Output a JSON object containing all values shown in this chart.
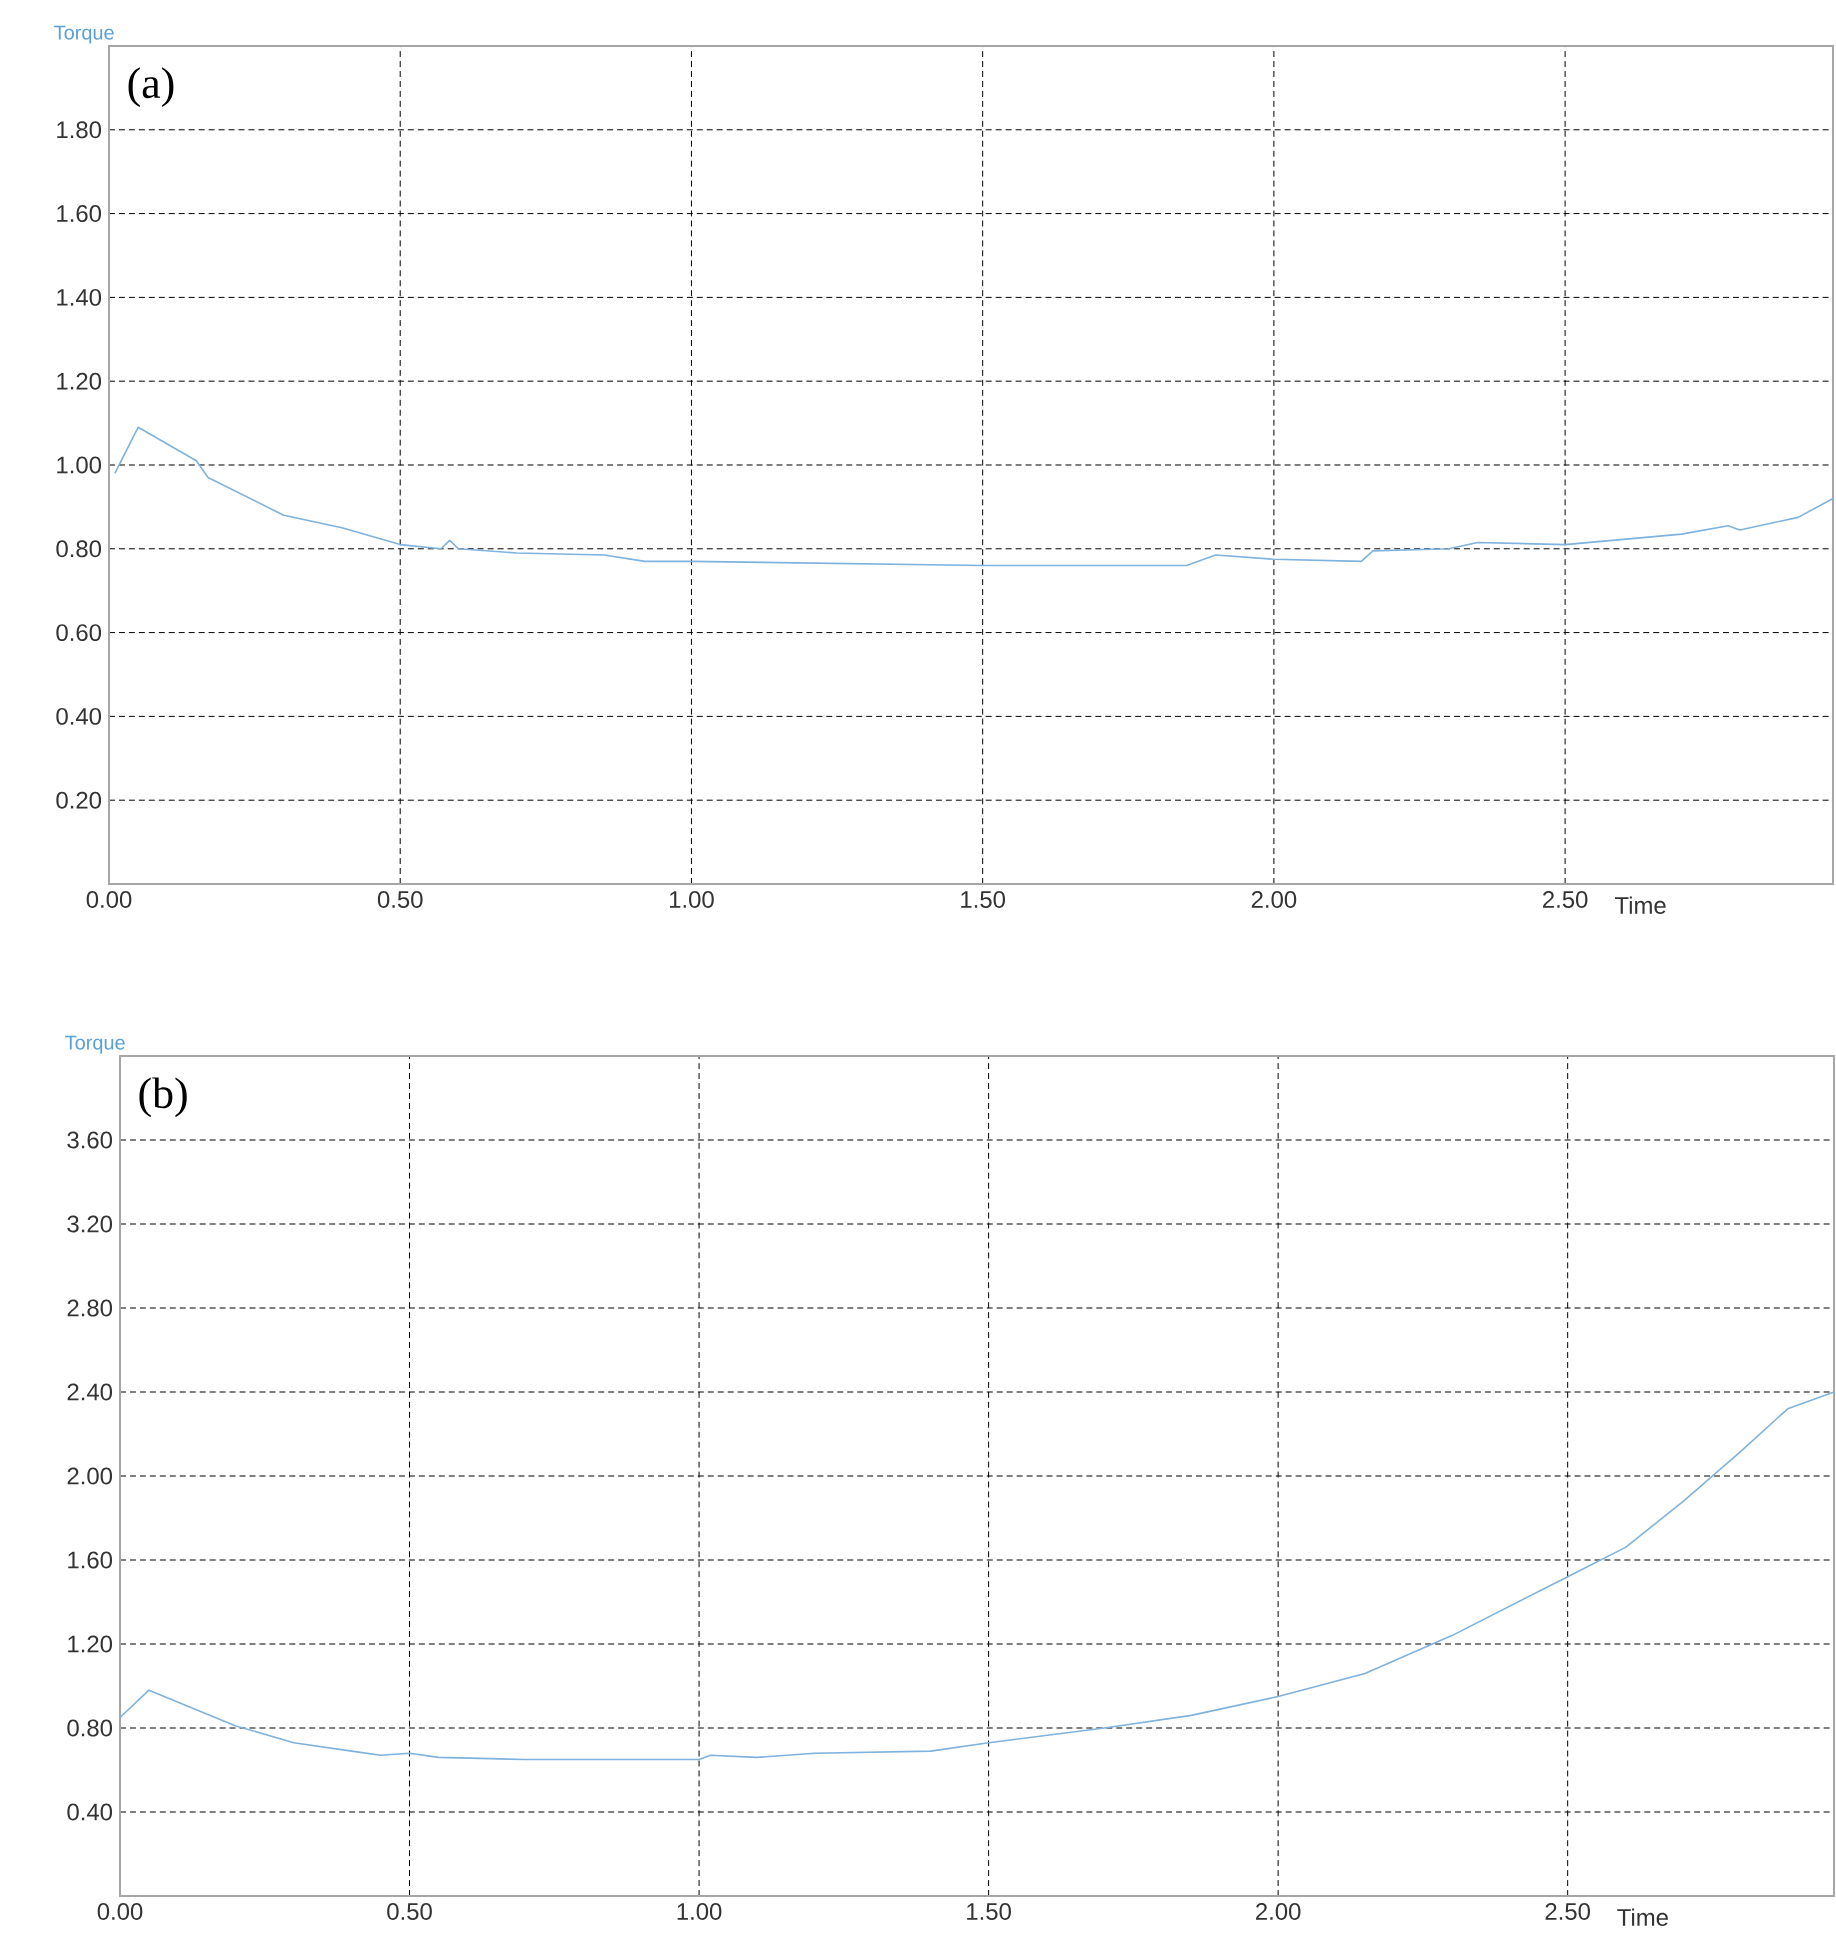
{
  "chart_data": [
    {
      "type": "line",
      "xlabel": "Time",
      "ylabel": "Torque",
      "annotations": [
        "(a)"
      ],
      "grid": true,
      "line_style": "solid",
      "xlim": [
        0,
        2.96
      ],
      "ylim": [
        0,
        2.0
      ],
      "xticks": [
        {
          "value": 0,
          "label": "0.00"
        },
        {
          "value": 0.5,
          "label": "0.50"
        },
        {
          "value": 1,
          "label": "1.00"
        },
        {
          "value": 1.5,
          "label": "1.50"
        },
        {
          "value": 2,
          "label": "2.00"
        },
        {
          "value": 2.5,
          "label": "2.50"
        }
      ],
      "yticks": [
        {
          "value": 0.2,
          "label": "0.20"
        },
        {
          "value": 0.4,
          "label": "0.40"
        },
        {
          "value": 0.6,
          "label": "0.60"
        },
        {
          "value": 0.8,
          "label": "0.80"
        },
        {
          "value": 1.0,
          "label": "1.00"
        },
        {
          "value": 1.2,
          "label": "1.20"
        },
        {
          "value": 1.4,
          "label": "1.40"
        },
        {
          "value": 1.6,
          "label": "1.60"
        },
        {
          "value": 1.8,
          "label": "1.80"
        }
      ],
      "x": [
        0.01,
        0.05,
        0.15,
        0.17,
        0.3,
        0.4,
        0.5,
        0.57,
        0.585,
        0.6,
        0.7,
        0.85,
        0.92,
        1.0,
        1.5,
        1.85,
        1.9,
        2.0,
        2.15,
        2.17,
        2.3,
        2.35,
        2.5,
        2.7,
        2.78,
        2.8,
        2.9,
        2.96
      ],
      "series": [
        {
          "color": "#7fb2dd",
          "values": [
            0.98,
            1.09,
            1.01,
            0.97,
            0.88,
            0.85,
            0.81,
            0.8,
            0.82,
            0.8,
            0.79,
            0.785,
            0.77,
            0.77,
            0.76,
            0.76,
            0.785,
            0.775,
            0.77,
            0.795,
            0.8,
            0.815,
            0.81,
            0.835,
            0.855,
            0.845,
            0.875,
            0.92
          ]
        }
      ]
    },
    {
      "type": "line",
      "xlabel": "Time",
      "ylabel": "Torque",
      "annotations": [
        "(b)"
      ],
      "grid": true,
      "line_style": "solid",
      "xlim": [
        0,
        2.96
      ],
      "ylim": [
        0,
        4.0
      ],
      "xticks": [
        {
          "value": 0,
          "label": "0.00"
        },
        {
          "value": 0.5,
          "label": "0.50"
        },
        {
          "value": 1,
          "label": "1.00"
        },
        {
          "value": 1.5,
          "label": "1.50"
        },
        {
          "value": 2,
          "label": "2.00"
        },
        {
          "value": 2.5,
          "label": "2.50"
        }
      ],
      "yticks": [
        {
          "value": 0.4,
          "label": "0.40"
        },
        {
          "value": 0.8,
          "label": "0.80"
        },
        {
          "value": 1.2,
          "label": "1.20"
        },
        {
          "value": 1.6,
          "label": "1.60"
        },
        {
          "value": 2.0,
          "label": "2.00"
        },
        {
          "value": 2.4,
          "label": "2.40"
        },
        {
          "value": 2.8,
          "label": "2.80"
        },
        {
          "value": 3.2,
          "label": "3.20"
        },
        {
          "value": 3.6,
          "label": "3.60"
        }
      ],
      "x": [
        0,
        0.05,
        0.2,
        0.3,
        0.4,
        0.45,
        0.5,
        0.55,
        0.7,
        1.0,
        1.02,
        1.1,
        1.2,
        1.4,
        1.5,
        1.7,
        1.85,
        2.0,
        2.15,
        2.3,
        2.5,
        2.6,
        2.7,
        2.8,
        2.88,
        2.96
      ],
      "series": [
        {
          "color": "#7fb2dd",
          "values": [
            0.85,
            0.98,
            0.81,
            0.73,
            0.69,
            0.67,
            0.68,
            0.66,
            0.65,
            0.65,
            0.67,
            0.66,
            0.68,
            0.69,
            0.73,
            0.8,
            0.86,
            0.95,
            1.06,
            1.24,
            1.52,
            1.66,
            1.88,
            2.12,
            2.32,
            2.4
          ]
        }
      ]
    }
  ]
}
